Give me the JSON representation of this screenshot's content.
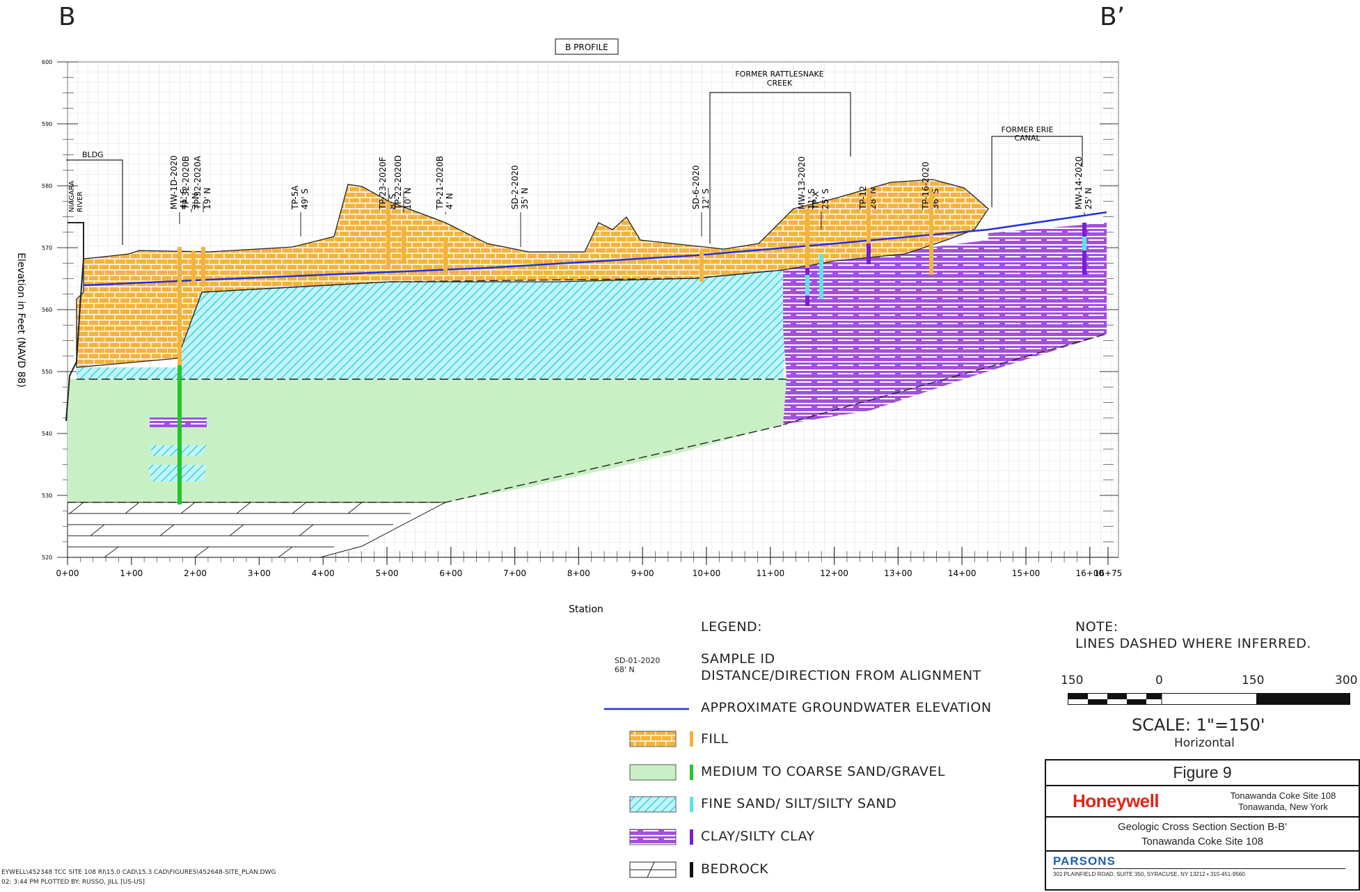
{
  "corner_left": "B",
  "corner_right": "B’",
  "profile_label": "B PROFILE",
  "y_axis_label": "Elevation in Feet (NAVD 88)",
  "y_ticks": [
    "600",
    "590",
    "580",
    "570",
    "560",
    "550",
    "540",
    "530",
    "520"
  ],
  "x_ticks": [
    "0+00",
    "1+00",
    "2+00",
    "3+00",
    "4+00",
    "5+00",
    "6+00",
    "7+00",
    "8+00",
    "9+00",
    "10+00",
    "11+00",
    "12+00",
    "13+00",
    "14+00",
    "15+00",
    "16+00",
    "16+75"
  ],
  "x_axis_label": "Station",
  "features": {
    "bldg": "BLDG",
    "niagara": [
      "NIAGARA",
      "RIVER"
    ],
    "creek": [
      "FORMER RATTLESNAKE",
      "CREEK"
    ],
    "canal": [
      "FORMER ERIE",
      "CANAL"
    ]
  },
  "samples": [
    {
      "id": "MW-1D-2020",
      "dist": "41' S"
    },
    {
      "id": "TP-32-2020B",
      "dist": "3' N"
    },
    {
      "id": "TP-32-2020A",
      "dist": "19' N"
    },
    {
      "id": "TP-5A",
      "dist": "49' S"
    },
    {
      "id": "TP-23-2020F",
      "dist": "8' S"
    },
    {
      "id": "TP-22-2020D",
      "dist": "10' N"
    },
    {
      "id": "TP-21-2020B",
      "dist": "4' N"
    },
    {
      "id": "SD-2-2020",
      "dist": "35' N"
    },
    {
      "id": "SD-6-2020",
      "dist": "12' S"
    },
    {
      "id": "MW-13-2020",
      "dist": "11' S"
    },
    {
      "id": "TP-X",
      "dist": "25' S"
    },
    {
      "id": "TP-12",
      "dist": "28' N"
    },
    {
      "id": "TP-16-2020",
      "dist": "36' S"
    },
    {
      "id": "MW-14-2020",
      "dist": "25' N"
    }
  ],
  "legend": {
    "title": "LEGEND:",
    "example_id": "SD-01-2020",
    "example_dist": "68' N",
    "sample_id_label": "SAMPLE ID",
    "distance_label": "DISTANCE/DIRECTION FROM ALIGNMENT",
    "groundwater": "APPROXIMATE GROUNDWATER ELEVATION",
    "fill": "FILL",
    "sand_gravel": "MEDIUM TO COARSE SAND/GRAVEL",
    "fine_sand": "FINE SAND/ SILT/SILTY SAND",
    "clay": "CLAY/SILTY CLAY",
    "bedrock": "BEDROCK"
  },
  "note": {
    "title": "NOTE:",
    "text": "LINES DASHED WHERE INFERRED."
  },
  "scale": {
    "ticks": [
      "150",
      "0",
      "150",
      "300"
    ],
    "label": "SCALE:   1\"=150'",
    "orientation": "Horizontal"
  },
  "title_block": {
    "figure": "Figure 9",
    "company": "Honeywell",
    "site_line1": "Tonawanda Coke Site 108",
    "site_line2": "Tonawanda, New York",
    "title_line1": "Geologic Cross Section Section B-B'",
    "title_line2": "Tonawanda Coke Site 108",
    "firm": "PARSONS",
    "address": "301 PLAINFIELD ROAD, SUITE 350, SYRACUSE, NY 13212 • 315-451-9560"
  },
  "file_path": "EYWELL\\452348 TCC SITE 108 RI\\15.0 CAD\\15.3 CAD\\FIGURES\\452648-SITE_PLAN.DWG",
  "plot_line": "02: 3:44 PM   PLOTTED BY: RUSSO, JILL [US-US]",
  "colors": {
    "fill": "#f3b33d",
    "sand_gravel": "#c9f0c4",
    "fine_sand": "#5fe3ee",
    "clay": "#a24fe0",
    "groundwater": "#2230d8",
    "honeywell": "#e1251b",
    "parsons": "#1f5fa8"
  }
}
